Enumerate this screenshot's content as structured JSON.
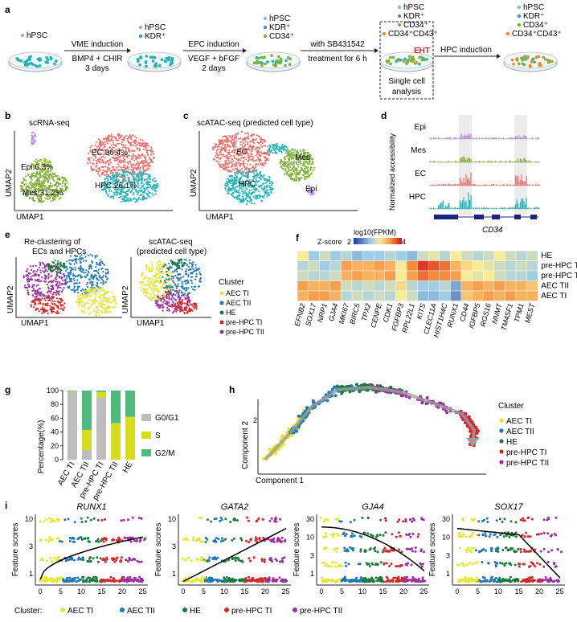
{
  "colors": {
    "aec_ti": "#e7e62a",
    "aec_tii": "#1f77b4",
    "he": "#1b7a3a",
    "pre_hpc_ti": "#d62728",
    "pre_hpc_tii": "#9b2fa0",
    "ec": "#ea6f6a",
    "hpc": "#22b3b8",
    "epi": "#b38be0",
    "mes": "#7fb039",
    "g0g1": "#bdbdbd",
    "s": "#d5de1e",
    "g2m": "#4fba7c"
  },
  "panel_a": {
    "letter": "a",
    "dish1": {
      "legend": [
        "hPSC"
      ]
    },
    "step1": {
      "title": "VME induction",
      "line2": "BMP4 + CHIR",
      "line3": "3 days"
    },
    "dish2": {
      "legend": [
        "hPSC",
        "KDR⁺"
      ]
    },
    "step2": {
      "title": "EPC induction",
      "line2": "VEGF + bFGF",
      "line3": "2 days"
    },
    "dish3": {
      "legend": [
        "hPSC",
        "KDR⁺",
        "CD34⁺"
      ]
    },
    "step3": {
      "title": "with SB431542",
      "line2": "treatment for 6 h"
    },
    "dish4": {
      "legend": [
        "hPSC",
        "KDR⁺",
        "CD34⁺",
        "CD34⁺CD43⁺"
      ],
      "eht": "EHT",
      "box": "Single cell\nanalysis",
      "box1": "Single cell",
      "box2": "analysis"
    },
    "step4": {
      "title": "HPC induction"
    },
    "dish5": {
      "legend": [
        "hPSC",
        "KDR⁺",
        "CD34⁺",
        "CD34⁺CD43⁺"
      ]
    }
  },
  "panel_b": {
    "letter": "b",
    "title": "scRNA-seq",
    "xlabel": "UMAP1",
    "ylabel": "UMAP2",
    "labels": {
      "ec": "EC:36.4%",
      "hpc": "HPC:26.1%",
      "epi": "Epi:6.3%",
      "mes": "Mes:31.2%"
    }
  },
  "panel_c": {
    "letter": "c",
    "title": "scATAC-seq (predicted cell type)",
    "xlabel": "UMAP1",
    "ylabel": "UMAP2",
    "labels": {
      "ec": "EC",
      "hpc": "HPC",
      "mes": "Mes",
      "epi": "Epi"
    }
  },
  "panel_d": {
    "letter": "d",
    "ylabel": "Normalized accessibility",
    "gene": "CD34",
    "tracks": [
      "Epi",
      "Mes",
      "EC",
      "HPC"
    ]
  },
  "panel_e": {
    "letter": "e",
    "title1a": "Re-clustering of",
    "title1b": "ECs and HPCs",
    "title2a": "scATAC-seq",
    "title2b": "(predicted cell type)",
    "xlabel": "UMAP1",
    "ylabel": "UMAP2",
    "legend_title": "Cluster",
    "legend": [
      "AEC TI",
      "AEC TII",
      "HE",
      "pre-HPC TI",
      "pre-HPC TII"
    ]
  },
  "panel_f": {
    "letter": "f",
    "zscore_label": "Z-score",
    "scale_min": "2",
    "scale_max": "4",
    "scale_title": "log10(FPKM)",
    "rows": [
      "HE",
      "pre-HPC TII",
      "pre-HPC TI",
      "AEC TII",
      "AEC TI"
    ],
    "genes": [
      "EFNB2",
      "SOX17",
      "NRP1",
      "GJA4",
      "MKI67",
      "BIRC5",
      "TPX2",
      "CENPE",
      "CDK1",
      "FGFBP3",
      "RPL22L1",
      "KITS",
      "CLEC11A",
      "HIST1H4C",
      "RUNX1",
      "CD44",
      "IGFBP5",
      "RGS16",
      "NNMT",
      "TM4SF1",
      "TPM1",
      "MEST"
    ],
    "matrix": [
      [
        0.55,
        0.35,
        0.45,
        0.35,
        0.4,
        0.3,
        0.35,
        0.35,
        0.4,
        0.35,
        0.3,
        0.45,
        0.5,
        0.4,
        0.55,
        0.45,
        0.4,
        0.45,
        0.55,
        0.45,
        0.4,
        0.45
      ],
      [
        0.4,
        0.45,
        0.35,
        0.4,
        0.75,
        0.7,
        0.7,
        0.75,
        0.7,
        0.55,
        0.8,
        0.95,
        0.9,
        0.85,
        0.7,
        0.6,
        0.55,
        0.5,
        0.45,
        0.4,
        0.45,
        0.4
      ],
      [
        0.45,
        0.4,
        0.4,
        0.45,
        0.7,
        0.75,
        0.7,
        0.7,
        0.75,
        0.55,
        0.75,
        0.85,
        0.8,
        0.8,
        0.75,
        0.55,
        0.5,
        0.55,
        0.45,
        0.4,
        0.4,
        0.35
      ],
      [
        0.75,
        0.7,
        0.7,
        0.75,
        0.45,
        0.4,
        0.45,
        0.4,
        0.45,
        0.6,
        0.4,
        0.35,
        0.35,
        0.4,
        0.25,
        0.7,
        0.75,
        0.7,
        0.75,
        0.7,
        0.7,
        0.65
      ],
      [
        0.7,
        0.75,
        0.75,
        0.7,
        0.4,
        0.45,
        0.4,
        0.45,
        0.4,
        0.55,
        0.45,
        0.3,
        0.3,
        0.35,
        0.2,
        0.65,
        0.7,
        0.75,
        0.7,
        0.75,
        0.7,
        0.7
      ]
    ]
  },
  "panel_g": {
    "letter": "g",
    "ylabel": "Percentage(%)",
    "yticks": [
      "0",
      "20",
      "40",
      "60",
      "80",
      "100"
    ],
    "categories": [
      "AEC TI",
      "AEC TII",
      "pre-HPC TI",
      "pre-HPC TII",
      "HE"
    ],
    "legend": [
      "G0/G1",
      "S",
      "G2/M"
    ],
    "chart_data": {
      "type": "bar",
      "categories": [
        "AEC TI",
        "AEC TII",
        "pre-HPC TI",
        "pre-HPC TII",
        "HE"
      ],
      "series": [
        {
          "name": "G0/G1",
          "values": [
            98,
            14,
            90,
            0,
            0
          ]
        },
        {
          "name": "S",
          "values": [
            1,
            29,
            8,
            53,
            62
          ]
        },
        {
          "name": "G2/M",
          "values": [
            1,
            57,
            2,
            47,
            38
          ]
        }
      ],
      "ylabel": "Percentage(%)",
      "ylim": [
        0,
        100
      ]
    }
  },
  "panel_h": {
    "letter": "h",
    "xlabel": "Component 1",
    "ylabel": "Component 2",
    "ytick": "2",
    "legend_title": "Cluster",
    "legend": [
      "AEC TI",
      "AEC TII",
      "HE",
      "pre-HPC TI",
      "pre-HPC TII"
    ]
  },
  "panel_i": {
    "letter": "i",
    "ylabel": "Feature scores",
    "plots": [
      {
        "gene": "RUNX1",
        "yticks": [
          "1",
          "3",
          "10"
        ]
      },
      {
        "gene": "GATA2",
        "yticks": [
          "1",
          "3",
          "10"
        ]
      },
      {
        "gene": "GJA4",
        "yticks": [
          "1",
          "3",
          "10",
          "30"
        ]
      },
      {
        "gene": "SOX17",
        "yticks": [
          "1",
          "3",
          "10",
          "30"
        ]
      }
    ],
    "xticks": [
      "0",
      "5",
      "10",
      "15",
      "20",
      "25"
    ],
    "legend_label": "Cluster:",
    "legend": [
      "AEC TI",
      "AEC TII",
      "HE",
      "pre-HPC TI",
      "pre-HPC TII"
    ]
  }
}
